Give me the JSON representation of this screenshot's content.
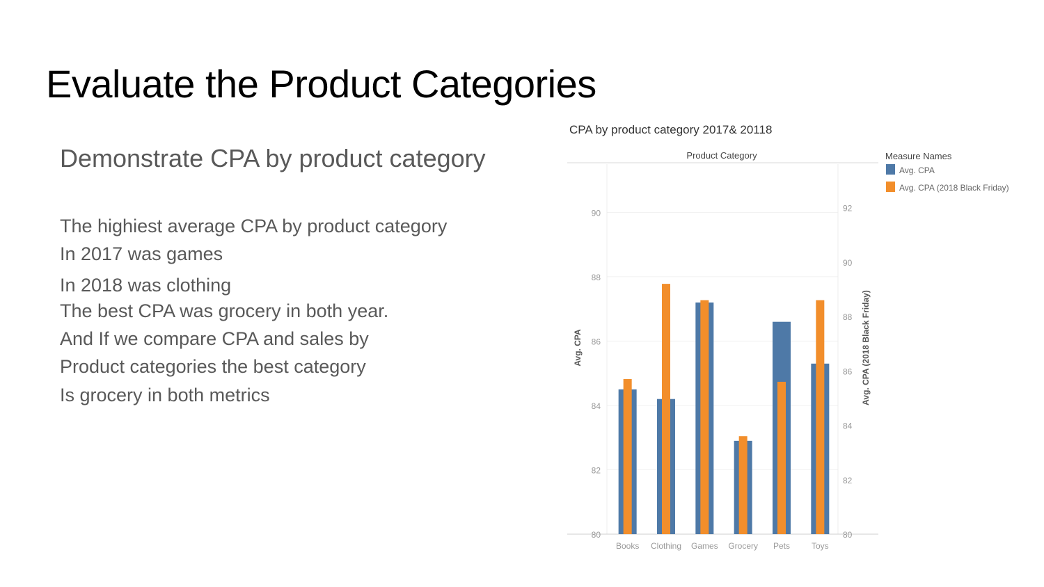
{
  "slide": {
    "title": "Evaluate the Product Categories",
    "subtitle": "Demonstrate CPA by product category",
    "lines": [
      "The  highiest  average CPA by product category",
      "In 2017  was games",
      "In 2018 was clothing",
      "The best CPA was grocery in both year.",
      "And If we compare CPA and sales by",
      "Product categories the best category",
      "Is grocery in both metrics"
    ]
  },
  "chart_data": {
    "type": "bar",
    "title": "CPA by product category 2017& 20118",
    "header": "Product Category",
    "categories": [
      "Books",
      "Clothing",
      "Games",
      "Grocery",
      "Pets",
      "Toys"
    ],
    "ylabel_left": "Avg. CPA",
    "ylabel_right": "Avg. CPA (2018 Black Friday)",
    "ylim_left": [
      80,
      91.5
    ],
    "ylim_right": [
      80,
      93.6
    ],
    "yticks_left": [
      80,
      82,
      84,
      86,
      88,
      90
    ],
    "yticks_right": [
      80,
      82,
      84,
      86,
      88,
      90,
      92
    ],
    "legend_title": "Measure Names",
    "legend_position": "top-right",
    "series": [
      {
        "name": "Avg. CPA",
        "axis": "left",
        "color": "#4e79a7",
        "values": [
          84.5,
          84.2,
          87.2,
          82.9,
          86.6,
          85.3
        ]
      },
      {
        "name": "Avg. CPA (2018 Black Friday)",
        "axis": "right",
        "color": "#f28e2b",
        "values": [
          85.7,
          89.2,
          88.6,
          83.6,
          85.6,
          88.6
        ]
      }
    ]
  }
}
